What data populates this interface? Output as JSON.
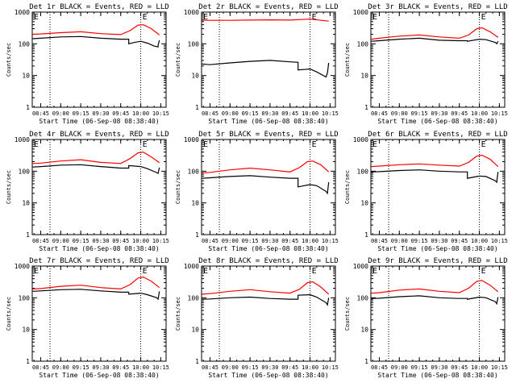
{
  "chart_data": [
    {
      "type": "line",
      "title": "Det 1r BLACK = Events, RED = LLD",
      "ylabel": "Counts/sec",
      "xlabel": "Start Time (06-Sep-08 08:38:40)",
      "yscale": "log",
      "ylim": [
        1,
        1000
      ],
      "xlim": [
        "08:38:40",
        "10:19:00"
      ],
      "x_ticks": [
        "08:45",
        "09:00",
        "09:15",
        "09:30",
        "09:45",
        "10:00",
        "10:15"
      ],
      "y_ticks": [
        "1",
        "10",
        "100",
        "1000"
      ],
      "markers": [
        {
          "label": "E",
          "x": "08:38:40"
        },
        {
          "label": "E",
          "x": "10:00"
        }
      ],
      "vlines": [
        "08:52",
        "10:00"
      ],
      "series": [
        {
          "color": "#000000",
          "x": [
            "08:39",
            "08:45",
            "09:00",
            "09:15",
            "09:30",
            "09:45",
            "09:51",
            "09:51",
            "09:55",
            "10:00",
            "10:05",
            "10:10",
            "10:13",
            "10:13",
            "10:14"
          ],
          "y": [
            145,
            150,
            165,
            170,
            150,
            140,
            140,
            100,
            110,
            120,
            105,
            85,
            80,
            90,
            130
          ]
        },
        {
          "color": "#ff0000",
          "x": [
            "08:39",
            "08:45",
            "09:00",
            "09:15",
            "09:30",
            "09:45",
            "09:52",
            "09:58",
            "10:02",
            "10:08",
            "10:14"
          ],
          "y": [
            200,
            205,
            225,
            240,
            210,
            195,
            260,
            390,
            400,
            300,
            190
          ]
        }
      ]
    },
    {
      "type": "line",
      "title": "Det 2r BLACK = Events, RED = LLD",
      "ylabel": "Counts/sec",
      "xlabel": "Start Time (06-Sep-08 08:38:40)",
      "yscale": "log",
      "ylim": [
        1,
        1000
      ],
      "xlim": [
        "08:38:40",
        "10:19:00"
      ],
      "x_ticks": [
        "08:45",
        "09:00",
        "09:15",
        "09:30",
        "09:45",
        "10:00",
        "10:15"
      ],
      "y_ticks": [
        "1",
        "10",
        "100",
        "1000"
      ],
      "markers": [
        {
          "label": "E",
          "x": "08:38:40"
        },
        {
          "label": "E",
          "x": "10:00"
        }
      ],
      "vlines": [
        "08:52",
        "10:00"
      ],
      "series": [
        {
          "color": "#000000",
          "x": [
            "08:39",
            "08:45",
            "09:00",
            "09:15",
            "09:30",
            "09:45",
            "09:51",
            "09:51",
            "10:00",
            "10:05",
            "10:12",
            "10:13",
            "10:14"
          ],
          "y": [
            23,
            22,
            25,
            28,
            30,
            27,
            26,
            15,
            16,
            13,
            9,
            12,
            25
          ]
        },
        {
          "color": "#ff0000",
          "x": [
            "08:39",
            "09:00",
            "09:15",
            "09:30",
            "09:45",
            "10:00",
            "10:14"
          ],
          "y": [
            550,
            550,
            560,
            570,
            560,
            600,
            520
          ]
        }
      ]
    },
    {
      "type": "line",
      "title": "Det 3r BLACK = Events, RED = LLD",
      "ylabel": "Counts/sec",
      "xlabel": "Start Time (06-Sep-08 08:38:40)",
      "yscale": "log",
      "ylim": [
        1,
        1000
      ],
      "xlim": [
        "08:38:40",
        "10:19:00"
      ],
      "x_ticks": [
        "08:45",
        "09:00",
        "09:15",
        "09:30",
        "09:45",
        "10:00",
        "10:15"
      ],
      "y_ticks": [
        "1",
        "10",
        "100",
        "1000"
      ],
      "markers": [
        {
          "label": "E",
          "x": "08:38:40"
        },
        {
          "label": "E",
          "x": "10:00"
        }
      ],
      "vlines": [
        "08:52",
        "10:00"
      ],
      "series": [
        {
          "color": "#000000",
          "x": [
            "08:39",
            "08:45",
            "09:00",
            "09:15",
            "09:30",
            "09:45",
            "09:51",
            "09:51",
            "10:00",
            "10:05",
            "10:12",
            "10:13",
            "10:14"
          ],
          "y": [
            120,
            125,
            140,
            150,
            130,
            125,
            125,
            120,
            140,
            135,
            110,
            100,
            120
          ]
        },
        {
          "color": "#ff0000",
          "x": [
            "08:39",
            "08:45",
            "09:00",
            "09:15",
            "09:30",
            "09:45",
            "09:52",
            "09:58",
            "10:02",
            "10:08",
            "10:14"
          ],
          "y": [
            140,
            150,
            175,
            190,
            165,
            150,
            190,
            300,
            320,
            240,
            160
          ]
        }
      ]
    },
    {
      "type": "line",
      "title": "Det 4r BLACK = Events, RED = LLD",
      "ylabel": "Counts/sec",
      "xlabel": "Start Time (06-Sep-08 08:38:40)",
      "yscale": "log",
      "ylim": [
        1,
        1000
      ],
      "xlim": [
        "08:38:40",
        "10:19:00"
      ],
      "x_ticks": [
        "08:45",
        "09:00",
        "09:15",
        "09:30",
        "09:45",
        "10:00",
        "10:15"
      ],
      "y_ticks": [
        "1",
        "10",
        "100",
        "1000"
      ],
      "markers": [
        {
          "label": "E",
          "x": "08:38:40"
        },
        {
          "label": "E",
          "x": "10:00"
        }
      ],
      "vlines": [
        "08:52",
        "10:00"
      ],
      "series": [
        {
          "color": "#000000",
          "x": [
            "08:39",
            "08:45",
            "09:00",
            "09:15",
            "09:30",
            "09:45",
            "09:51",
            "09:51",
            "10:00",
            "10:05",
            "10:12",
            "10:13",
            "10:14"
          ],
          "y": [
            135,
            140,
            155,
            160,
            140,
            125,
            125,
            150,
            140,
            120,
            90,
            85,
            130
          ]
        },
        {
          "color": "#ff0000",
          "x": [
            "08:39",
            "08:45",
            "09:00",
            "09:15",
            "09:30",
            "09:45",
            "09:52",
            "09:58",
            "10:02",
            "10:08",
            "10:14"
          ],
          "y": [
            175,
            180,
            210,
            230,
            190,
            175,
            250,
            380,
            400,
            280,
            185
          ]
        }
      ]
    },
    {
      "type": "line",
      "title": "Det 5r BLACK = Events, RED = LLD",
      "ylabel": "Counts/sec",
      "xlabel": "Start Time (06-Sep-08 08:38:40)",
      "yscale": "log",
      "ylim": [
        1,
        1000
      ],
      "xlim": [
        "08:38:40",
        "10:19:00"
      ],
      "x_ticks": [
        "08:45",
        "09:00",
        "09:15",
        "09:30",
        "09:45",
        "10:00",
        "10:15"
      ],
      "y_ticks": [
        "1",
        "10",
        "100",
        "1000"
      ],
      "markers": [
        {
          "label": "E",
          "x": "08:38:40"
        },
        {
          "label": "E",
          "x": "10:00"
        }
      ],
      "vlines": [
        "08:52",
        "10:00"
      ],
      "series": [
        {
          "color": "#000000",
          "x": [
            "08:39",
            "08:45",
            "09:00",
            "09:15",
            "09:30",
            "09:45",
            "09:51",
            "09:51",
            "10:00",
            "10:05",
            "10:12",
            "10:13",
            "10:14"
          ],
          "y": [
            60,
            62,
            68,
            72,
            65,
            60,
            60,
            32,
            38,
            35,
            23,
            20,
            45
          ]
        },
        {
          "color": "#ff0000",
          "x": [
            "08:39",
            "08:45",
            "09:00",
            "09:15",
            "09:30",
            "09:45",
            "09:52",
            "09:58",
            "10:02",
            "10:08",
            "10:14"
          ],
          "y": [
            88,
            92,
            110,
            125,
            110,
            95,
            130,
            200,
            210,
            160,
            95
          ]
        }
      ]
    },
    {
      "type": "line",
      "title": "Det 6r BLACK = Events, RED = LLD",
      "ylabel": "Counts/sec",
      "xlabel": "Start Time (06-Sep-08 08:38:40)",
      "yscale": "log",
      "ylim": [
        1,
        1000
      ],
      "xlim": [
        "08:38:40",
        "10:19:00"
      ],
      "x_ticks": [
        "08:45",
        "09:00",
        "09:15",
        "09:30",
        "09:45",
        "10:00",
        "10:15"
      ],
      "y_ticks": [
        "1",
        "10",
        "100",
        "1000"
      ],
      "markers": [
        {
          "label": "E",
          "x": "08:38:40"
        },
        {
          "label": "E",
          "x": "10:00"
        }
      ],
      "vlines": [
        "08:52",
        "10:00"
      ],
      "series": [
        {
          "color": "#000000",
          "x": [
            "08:39",
            "08:45",
            "09:00",
            "09:15",
            "09:30",
            "09:45",
            "09:51",
            "09:51",
            "10:00",
            "10:05",
            "10:12",
            "10:13",
            "10:14"
          ],
          "y": [
            95,
            97,
            105,
            110,
            100,
            95,
            95,
            60,
            70,
            68,
            50,
            45,
            95
          ]
        },
        {
          "color": "#ff0000",
          "x": [
            "08:39",
            "08:45",
            "09:00",
            "09:15",
            "09:30",
            "09:45",
            "09:52",
            "09:58",
            "10:02",
            "10:08",
            "10:14"
          ],
          "y": [
            140,
            145,
            160,
            170,
            155,
            145,
            190,
            300,
            320,
            240,
            140
          ]
        }
      ]
    },
    {
      "type": "line",
      "title": "Det 7r BLACK = Events, RED = LLD",
      "ylabel": "Counts/sec",
      "xlabel": "Start Time (06-Sep-08 08:38:40)",
      "yscale": "log",
      "ylim": [
        1,
        1000
      ],
      "xlim": [
        "08:38:40",
        "10:19:00"
      ],
      "x_ticks": [
        "08:45",
        "09:00",
        "09:15",
        "09:30",
        "09:45",
        "10:00",
        "10:15"
      ],
      "y_ticks": [
        "1",
        "10",
        "100",
        "1000"
      ],
      "markers": [
        {
          "label": "E",
          "x": "08:38:40"
        },
        {
          "label": "E",
          "x": "10:00"
        }
      ],
      "vlines": [
        "08:52",
        "10:00"
      ],
      "series": [
        {
          "color": "#000000",
          "x": [
            "08:39",
            "08:45",
            "09:00",
            "09:15",
            "09:30",
            "09:45",
            "09:51",
            "09:51",
            "10:00",
            "10:05",
            "10:12",
            "10:13",
            "10:14"
          ],
          "y": [
            160,
            165,
            180,
            185,
            165,
            150,
            150,
            130,
            140,
            125,
            100,
            90,
            160
          ]
        },
        {
          "color": "#ff0000",
          "x": [
            "08:39",
            "08:45",
            "09:00",
            "09:15",
            "09:30",
            "09:45",
            "09:52",
            "09:58",
            "10:02",
            "10:08",
            "10:14"
          ],
          "y": [
            190,
            195,
            230,
            250,
            210,
            190,
            260,
            420,
            450,
            330,
            210
          ]
        }
      ]
    },
    {
      "type": "line",
      "title": "Det 8r BLACK = Events, RED = LLD",
      "ylabel": "Counts/sec",
      "xlabel": "Start Time (06-Sep-08 08:38:40)",
      "yscale": "log",
      "ylim": [
        1,
        1000
      ],
      "xlim": [
        "08:38:40",
        "10:19:00"
      ],
      "x_ticks": [
        "08:45",
        "09:00",
        "09:15",
        "09:30",
        "09:45",
        "10:00",
        "10:15"
      ],
      "y_ticks": [
        "1",
        "10",
        "100",
        "1000"
      ],
      "markers": [
        {
          "label": "E",
          "x": "08:38:40"
        },
        {
          "label": "E",
          "x": "10:00"
        }
      ],
      "vlines": [
        "08:52",
        "10:00"
      ],
      "series": [
        {
          "color": "#000000",
          "x": [
            "08:39",
            "08:45",
            "09:00",
            "09:15",
            "09:30",
            "09:45",
            "09:51",
            "09:51",
            "10:00",
            "10:05",
            "10:12",
            "10:13",
            "10:14"
          ],
          "y": [
            90,
            92,
            100,
            105,
            95,
            90,
            90,
            120,
            125,
            105,
            70,
            60,
            100
          ]
        },
        {
          "color": "#ff0000",
          "x": [
            "08:39",
            "08:45",
            "09:00",
            "09:15",
            "09:30",
            "09:45",
            "09:52",
            "09:58",
            "10:02",
            "10:08",
            "10:14"
          ],
          "y": [
            130,
            135,
            160,
            180,
            155,
            140,
            185,
            300,
            320,
            220,
            130
          ]
        }
      ]
    },
    {
      "type": "line",
      "title": "Det 9r BLACK = Events, RED = LLD",
      "ylabel": "Counts/sec",
      "xlabel": "Start Time (06-Sep-08 08:38:40)",
      "yscale": "log",
      "ylim": [
        1,
        1000
      ],
      "xlim": [
        "08:38:40",
        "10:19:00"
      ],
      "x_ticks": [
        "08:45",
        "09:00",
        "09:15",
        "09:30",
        "09:45",
        "10:00",
        "10:15"
      ],
      "y_ticks": [
        "1",
        "10",
        "100",
        "1000"
      ],
      "markers": [
        {
          "label": "E",
          "x": "08:38:40"
        },
        {
          "label": "E",
          "x": "10:00"
        }
      ],
      "vlines": [
        "08:52",
        "10:00"
      ],
      "series": [
        {
          "color": "#000000",
          "x": [
            "08:39",
            "08:45",
            "09:00",
            "09:15",
            "09:30",
            "09:45",
            "09:51",
            "09:51",
            "10:00",
            "10:05",
            "10:12",
            "10:13",
            "10:14"
          ],
          "y": [
            95,
            97,
            108,
            115,
            100,
            95,
            95,
            90,
            105,
            100,
            75,
            65,
            105
          ]
        },
        {
          "color": "#ff0000",
          "x": [
            "08:39",
            "08:45",
            "09:00",
            "09:15",
            "09:30",
            "09:45",
            "09:52",
            "09:58",
            "10:02",
            "10:08",
            "10:14"
          ],
          "y": [
            140,
            145,
            175,
            190,
            160,
            145,
            200,
            330,
            350,
            250,
            155
          ]
        }
      ]
    }
  ]
}
